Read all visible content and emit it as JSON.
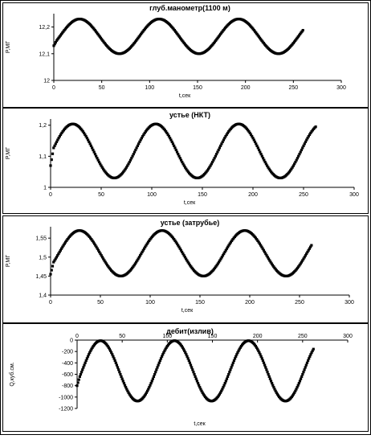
{
  "charts": [
    {
      "type": "scatter",
      "title": "глуб.манометр(1100 м)",
      "xlabel": "t,сек",
      "ylabel": "P,МГ",
      "xlim": [
        0,
        300
      ],
      "ylim": [
        12,
        12.25
      ],
      "xticks": [
        0,
        50,
        100,
        150,
        200,
        250,
        300
      ],
      "yticks": [
        12,
        12.1,
        12.2
      ],
      "ytick_labels": [
        "12",
        "12,1",
        "12,2"
      ],
      "grid": false,
      "legend": "none",
      "series": [
        {
          "model": "sine",
          "mean": 12.165,
          "amplitude": 0.065,
          "period": 83,
          "peak_at": [
            27,
            110,
            193
          ],
          "x_start": 0,
          "x_end": 260,
          "start_value": 12.13,
          "end_value": 12.19,
          "marker_color": "#000000"
        }
      ]
    },
    {
      "type": "scatter",
      "title": "устье (НКТ)",
      "xlabel": "t,сек",
      "ylabel": "P,МГ",
      "xlim": [
        0,
        300
      ],
      "ylim": [
        1,
        1.22
      ],
      "xticks": [
        0,
        50,
        100,
        150,
        200,
        250,
        300
      ],
      "yticks": [
        1,
        1.1,
        1.2
      ],
      "ytick_labels": [
        "1",
        "1,1",
        "1,2"
      ],
      "grid": false,
      "legend": "none",
      "series": [
        {
          "model": "sine",
          "mean": 1.117,
          "amplitude": 0.087,
          "period": 82,
          "peak_at": [
            22,
            104,
            186
          ],
          "x_start": 0,
          "x_end": 262,
          "start_value": 1.07,
          "end_value": 1.16,
          "marker_color": "#000000"
        }
      ]
    },
    {
      "type": "scatter",
      "title": "устье (затрубье)",
      "xlabel": "t,сек",
      "ylabel": "P,МГ",
      "xlim": [
        0,
        300
      ],
      "ylim": [
        1.4,
        1.58
      ],
      "xticks": [
        0,
        50,
        100,
        150,
        200,
        250,
        300
      ],
      "yticks": [
        1.4,
        1.45,
        1.5,
        1.55
      ],
      "ytick_labels": [
        "1,4",
        "1,45",
        "1,5",
        "1,55"
      ],
      "grid": false,
      "legend": "none",
      "series": [
        {
          "model": "sine",
          "mean": 1.51,
          "amplitude": 0.06,
          "period": 83,
          "peak_at": [
            29,
            112,
            195
          ],
          "x_start": 0,
          "x_end": 262,
          "start_value": 1.455,
          "end_value": 1.505,
          "marker_color": "#000000"
        }
      ]
    },
    {
      "type": "scatter",
      "title": "дебит(излив)",
      "xlabel": "t,сек",
      "ylabel": "Q,куб.см.",
      "xlim": [
        0,
        300
      ],
      "ylim": [
        -1200,
        0
      ],
      "xticks": [
        0,
        50,
        100,
        150,
        200,
        250,
        300
      ],
      "yticks": [
        0,
        -200,
        -400,
        -600,
        -800,
        -1000,
        -1200
      ],
      "ytick_labels": [
        "0",
        "-200",
        "-400",
        "-600",
        "-800",
        "-1000",
        "-1200"
      ],
      "grid": false,
      "legend": "none",
      "series": [
        {
          "model": "sine",
          "mean": -540,
          "amplitude": 530,
          "period": 82,
          "peak_at": [
            26,
            108,
            190
          ],
          "x_start": 0,
          "x_end": 262,
          "start_value": -800,
          "end_value": -380,
          "marker_color": "#000000"
        }
      ]
    }
  ]
}
